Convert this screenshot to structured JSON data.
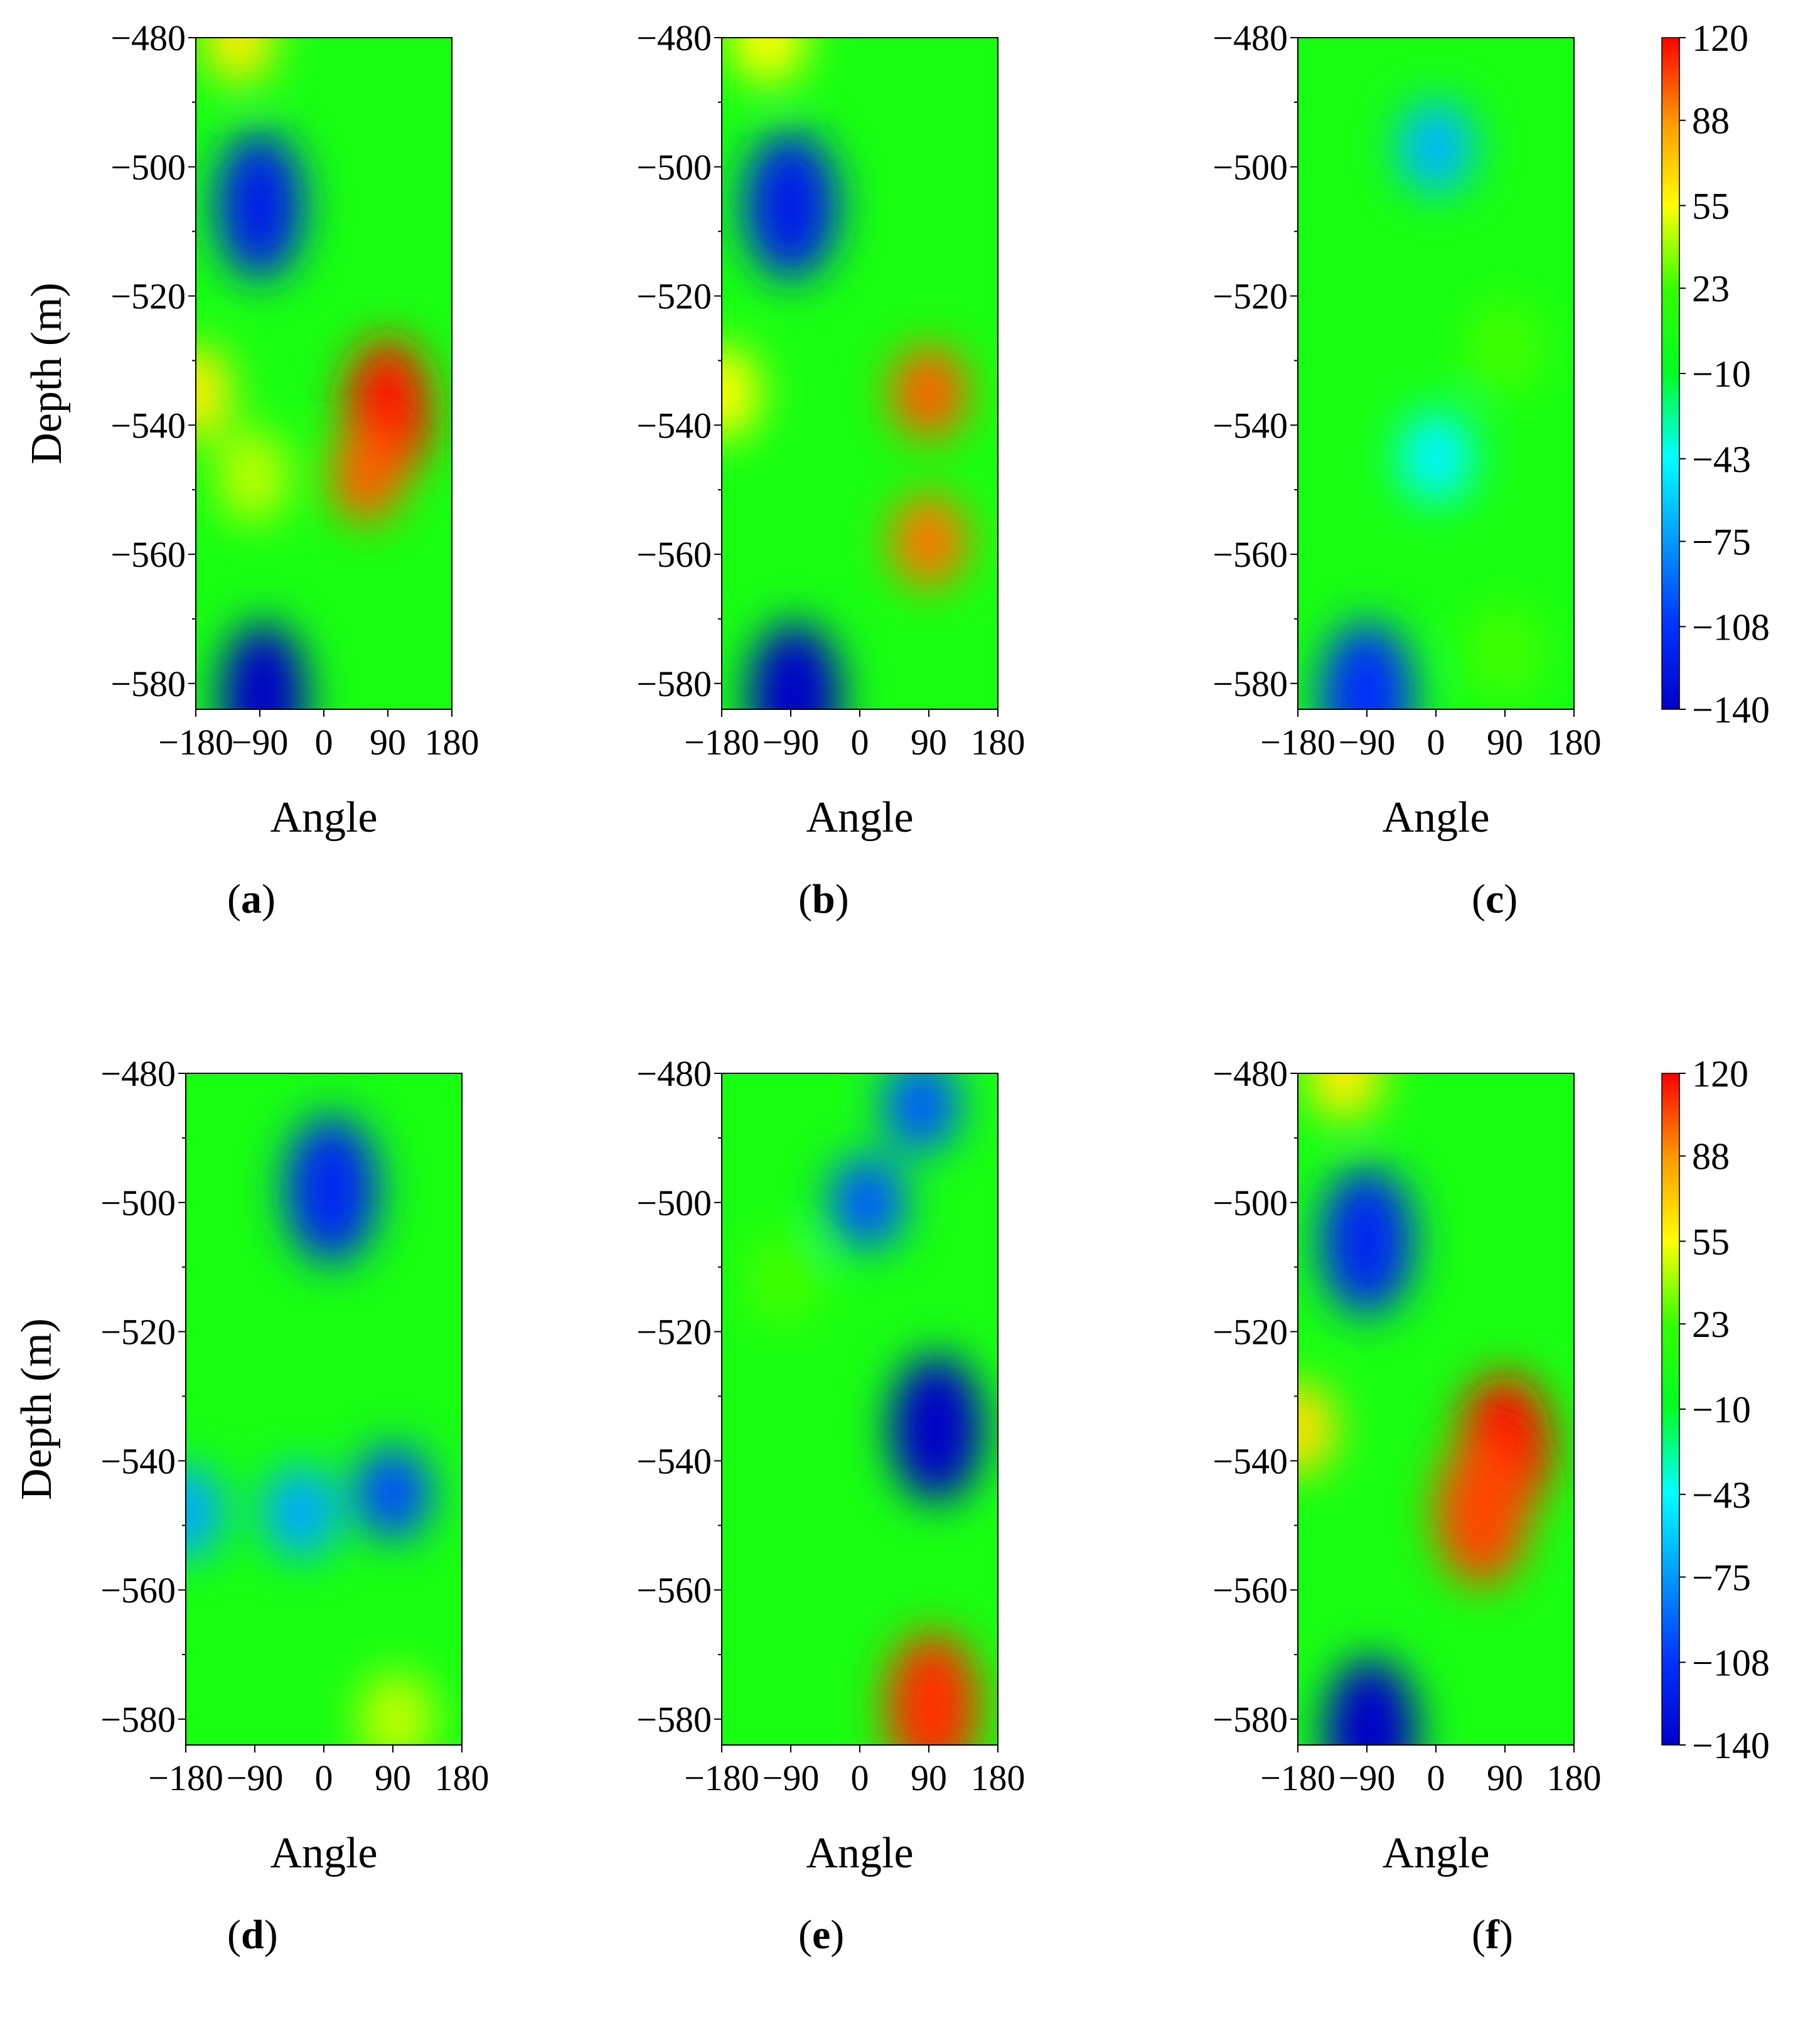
{
  "panels": [
    {
      "id": "a",
      "label": "a",
      "xlabel": "Angle",
      "ylabel": "Depth (m)"
    },
    {
      "id": "b",
      "label": "b",
      "xlabel": "Angle",
      "ylabel": ""
    },
    {
      "id": "c",
      "label": "c",
      "xlabel": "Angle",
      "ylabel": ""
    },
    {
      "id": "d",
      "label": "d",
      "xlabel": "Angle",
      "ylabel": "Depth (m)"
    },
    {
      "id": "e",
      "label": "e",
      "xlabel": "Angle",
      "ylabel": ""
    },
    {
      "id": "f",
      "label": "f",
      "xlabel": "Angle",
      "ylabel": ""
    }
  ],
  "chart_data": [
    {
      "panel": "a",
      "type": "heatmap",
      "xlabel": "Angle",
      "ylabel": "Depth (m)",
      "xlim": [
        -180,
        180
      ],
      "ylim": [
        -584,
        -480
      ],
      "x_ticks": [
        -180,
        -90,
        0,
        90,
        180
      ],
      "x_tick_labels": [
        "−180",
        "−90",
        "0",
        "90",
        "180"
      ],
      "y_ticks": [
        -480,
        -500,
        -520,
        -540,
        -560,
        -580
      ],
      "y_tick_labels": [
        "−480",
        "−500",
        "−520",
        "−540",
        "−560",
        "−580"
      ],
      "features": [
        {
          "angle": -90,
          "depth": -506,
          "value": -120
        },
        {
          "angle": -85,
          "depth": -582,
          "value": -140
        },
        {
          "angle": 90,
          "depth": -538,
          "value": 115
        },
        {
          "angle": 60,
          "depth": -548,
          "value": 100
        },
        {
          "angle": -180,
          "depth": -535,
          "value": 60
        },
        {
          "angle": -120,
          "depth": -480,
          "value": 60
        },
        {
          "angle": -100,
          "depth": -548,
          "value": 45
        }
      ]
    },
    {
      "panel": "b",
      "type": "heatmap",
      "xlabel": "Angle",
      "ylabel": "",
      "xlim": [
        -180,
        180
      ],
      "ylim": [
        -584,
        -480
      ],
      "x_ticks": [
        -180,
        -90,
        0,
        90,
        180
      ],
      "x_tick_labels": [
        "−180",
        "−90",
        "0",
        "90",
        "180"
      ],
      "y_ticks": [
        -480,
        -500,
        -520,
        -540,
        -560,
        -580
      ],
      "y_tick_labels": [
        "−480",
        "−500",
        "−520",
        "−540",
        "−560",
        "−580"
      ],
      "features": [
        {
          "angle": -90,
          "depth": -506,
          "value": -120
        },
        {
          "angle": -85,
          "depth": -582,
          "value": -140
        },
        {
          "angle": 90,
          "depth": -535,
          "value": 100
        },
        {
          "angle": 90,
          "depth": -558,
          "value": 95
        },
        {
          "angle": -180,
          "depth": -535,
          "value": 55
        },
        {
          "angle": -120,
          "depth": -480,
          "value": 55
        }
      ]
    },
    {
      "panel": "c",
      "type": "heatmap",
      "xlabel": "Angle",
      "ylabel": "",
      "xlim": [
        -180,
        180
      ],
      "ylim": [
        -584,
        -480
      ],
      "x_ticks": [
        -180,
        -90,
        0,
        90,
        180
      ],
      "x_tick_labels": [
        "−180",
        "−90",
        "0",
        "90",
        "180"
      ],
      "y_ticks": [
        -480,
        -500,
        -520,
        -540,
        -560,
        -580
      ],
      "y_tick_labels": [
        "−480",
        "−500",
        "−520",
        "−540",
        "−560",
        "−580"
      ],
      "features": [
        {
          "angle": 0,
          "depth": -497,
          "value": -65
        },
        {
          "angle": -90,
          "depth": -582,
          "value": -110
        },
        {
          "angle": 0,
          "depth": -545,
          "value": -45
        },
        {
          "angle": 90,
          "depth": -528,
          "value": 25
        },
        {
          "angle": 90,
          "depth": -575,
          "value": 25
        }
      ]
    },
    {
      "panel": "d",
      "type": "heatmap",
      "xlabel": "Angle",
      "ylabel": "Depth (m)",
      "xlim": [
        -180,
        180
      ],
      "ylim": [
        -584,
        -480
      ],
      "x_ticks": [
        -180,
        -90,
        0,
        90,
        180
      ],
      "x_tick_labels": [
        "−180",
        "−90",
        "0",
        "90",
        "180"
      ],
      "y_ticks": [
        -480,
        -500,
        -520,
        -540,
        -560,
        -580
      ],
      "y_tick_labels": [
        "−480",
        "−500",
        "−520",
        "−540",
        "−560",
        "−580"
      ],
      "features": [
        {
          "angle": 10,
          "depth": -498,
          "value": -115
        },
        {
          "angle": 90,
          "depth": -545,
          "value": -100
        },
        {
          "angle": -180,
          "depth": -548,
          "value": -70
        },
        {
          "angle": -30,
          "depth": -548,
          "value": -70
        },
        {
          "angle": 95,
          "depth": -580,
          "value": 45
        }
      ]
    },
    {
      "panel": "e",
      "type": "heatmap",
      "xlabel": "Angle",
      "ylabel": "",
      "xlim": [
        -180,
        180
      ],
      "ylim": [
        -584,
        -480
      ],
      "x_ticks": [
        -180,
        -90,
        0,
        90,
        180
      ],
      "x_tick_labels": [
        "−180",
        "−90",
        "0",
        "90",
        "180"
      ],
      "y_ticks": [
        -480,
        -500,
        -520,
        -540,
        -560,
        -580
      ],
      "y_tick_labels": [
        "−480",
        "−500",
        "−520",
        "−540",
        "−560",
        "−580"
      ],
      "features": [
        {
          "angle": 100,
          "depth": -535,
          "value": -140
        },
        {
          "angle": 10,
          "depth": -500,
          "value": -95
        },
        {
          "angle": 80,
          "depth": -485,
          "value": -95
        },
        {
          "angle": 95,
          "depth": -578,
          "value": 110
        },
        {
          "angle": -100,
          "depth": -512,
          "value": 25
        }
      ]
    },
    {
      "panel": "f",
      "type": "heatmap",
      "xlabel": "Angle",
      "ylabel": "",
      "xlim": [
        -180,
        180
      ],
      "ylim": [
        -584,
        -480
      ],
      "x_ticks": [
        -180,
        -90,
        0,
        90,
        180
      ],
      "x_tick_labels": [
        "−180",
        "−90",
        "0",
        "90",
        "180"
      ],
      "y_ticks": [
        -480,
        -500,
        -520,
        -540,
        -560,
        -580
      ],
      "y_tick_labels": [
        "−480",
        "−500",
        "−520",
        "−540",
        "−560",
        "−580"
      ],
      "features": [
        {
          "angle": -90,
          "depth": -506,
          "value": -115
        },
        {
          "angle": -85,
          "depth": -582,
          "value": -140
        },
        {
          "angle": 90,
          "depth": -538,
          "value": 118
        },
        {
          "angle": 60,
          "depth": -548,
          "value": 105
        },
        {
          "angle": -180,
          "depth": -535,
          "value": 65
        },
        {
          "angle": -120,
          "depth": -480,
          "value": 60
        }
      ]
    }
  ],
  "colorbar": {
    "min": -140,
    "max": 120,
    "ticks": [
      120,
      88,
      55,
      23,
      -10,
      -43,
      -75,
      -108,
      -140
    ],
    "tick_labels": [
      "120",
      "88",
      "55",
      "23",
      "−10",
      "−43",
      "−75",
      "−108",
      "−140"
    ],
    "colors": [
      "#0000c8",
      "#0033ff",
      "#0099ff",
      "#00ffff",
      "#00ff22",
      "#33ff00",
      "#ffff00",
      "#ff9900",
      "#ff0000"
    ]
  }
}
